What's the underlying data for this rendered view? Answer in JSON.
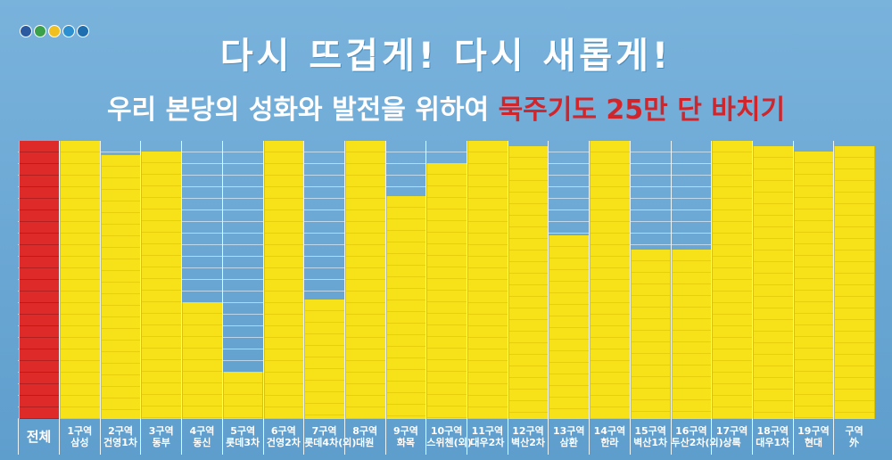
{
  "title": "다시 뜨겁게! 다시 새롭게!",
  "subtitle_white": "우리 본당의 성화와 발전을 위하여",
  "subtitle_red": "묵주기도 25만 단 바치기",
  "colors": {
    "board": "#6aa8d2",
    "sheet": "#f7e21a",
    "total": "#df2a2a",
    "accent": "#d0262b"
  },
  "columns": [
    {
      "line1": "전체",
      "line2": "",
      "fill": 1.0,
      "color": "red"
    },
    {
      "line1": "1구역",
      "line2": "삼성",
      "fill": 1.0,
      "color": "yellow"
    },
    {
      "line1": "2구역",
      "line2": "건영1차",
      "fill": 0.95,
      "color": "yellow"
    },
    {
      "line1": "3구역",
      "line2": "동부",
      "fill": 0.96,
      "color": "yellow"
    },
    {
      "line1": "4구역",
      "line2": "동신",
      "fill": 0.42,
      "color": "yellow"
    },
    {
      "line1": "5구역",
      "line2": "롯데3차",
      "fill": 0.17,
      "color": "yellow"
    },
    {
      "line1": "6구역",
      "line2": "건영2차",
      "fill": 1.0,
      "color": "yellow"
    },
    {
      "line1": "7구역",
      "line2": "롯데4차(외)",
      "fill": 0.43,
      "color": "yellow"
    },
    {
      "line1": "8구역",
      "line2": "대원",
      "fill": 1.0,
      "color": "yellow"
    },
    {
      "line1": "9구역",
      "line2": "화목",
      "fill": 0.8,
      "color": "yellow"
    },
    {
      "line1": "10구역",
      "line2": "스위첸(외)",
      "fill": 0.92,
      "color": "yellow"
    },
    {
      "line1": "11구역",
      "line2": "대우2차",
      "fill": 1.0,
      "color": "yellow"
    },
    {
      "line1": "12구역",
      "line2": "벽산2차",
      "fill": 0.98,
      "color": "yellow"
    },
    {
      "line1": "13구역",
      "line2": "삼환",
      "fill": 0.66,
      "color": "yellow"
    },
    {
      "line1": "14구역",
      "line2": "한라",
      "fill": 1.0,
      "color": "yellow"
    },
    {
      "line1": "15구역",
      "line2": "벽산1차",
      "fill": 0.61,
      "color": "yellow"
    },
    {
      "line1": "16구역",
      "line2": "두산2차(외)",
      "fill": 0.61,
      "color": "yellow"
    },
    {
      "line1": "17구역",
      "line2": "상록",
      "fill": 1.0,
      "color": "yellow"
    },
    {
      "line1": "18구역",
      "line2": "대우1차",
      "fill": 0.98,
      "color": "yellow"
    },
    {
      "line1": "19구역",
      "line2": "현대",
      "fill": 0.96,
      "color": "yellow"
    },
    {
      "line1": "구역",
      "line2": "外",
      "fill": 0.98,
      "color": "yellow"
    }
  ]
}
